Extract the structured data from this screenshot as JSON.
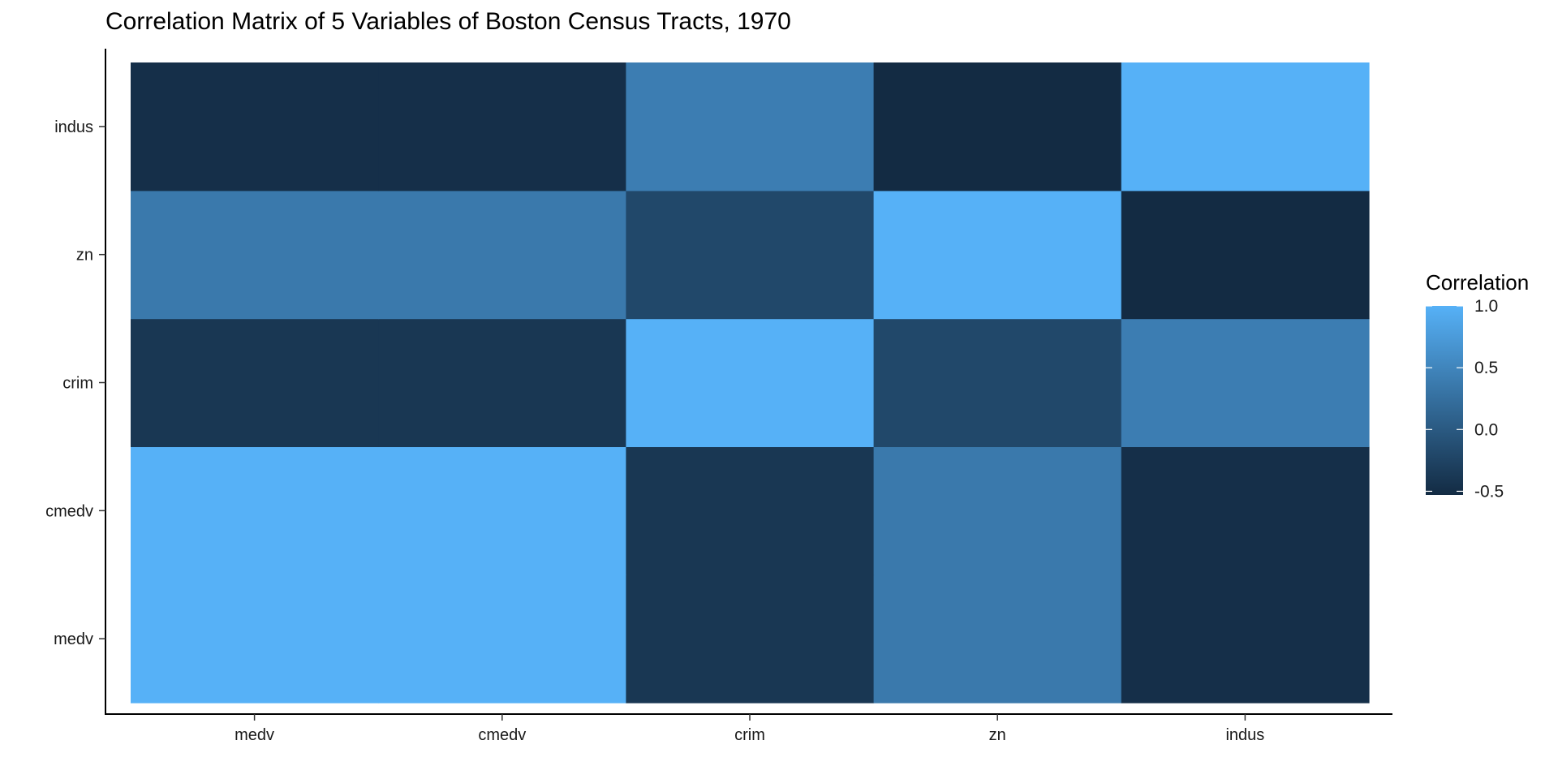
{
  "chart_data": {
    "type": "heatmap",
    "title": "Correlation Matrix of 5 Variables of Boston Census Tracts, 1970",
    "xlabel": "",
    "ylabel": "",
    "x_categories": [
      "medv",
      "cmedv",
      "crim",
      "zn",
      "indus"
    ],
    "y_categories": [
      "medv",
      "cmedv",
      "crim",
      "zn",
      "indus"
    ],
    "values": [
      [
        1.0,
        1.0,
        -0.39,
        0.36,
        -0.48
      ],
      [
        1.0,
        1.0,
        -0.39,
        0.36,
        -0.48
      ],
      [
        -0.39,
        -0.39,
        1.0,
        -0.2,
        0.41
      ],
      [
        0.36,
        0.36,
        -0.2,
        1.0,
        -0.53
      ],
      [
        -0.48,
        -0.48,
        0.41,
        -0.53,
        1.0
      ]
    ],
    "grid": false,
    "legend": {
      "title": "Correlation",
      "position": "right",
      "ticks": [
        1.0,
        0.5,
        0.0,
        -0.5
      ],
      "tick_labels": [
        "1.0",
        "0.5",
        "0.0",
        "-0.5"
      ],
      "range": [
        -0.53,
        1.0
      ]
    },
    "color_low": "#132B43",
    "color_high": "#56B1F7"
  }
}
